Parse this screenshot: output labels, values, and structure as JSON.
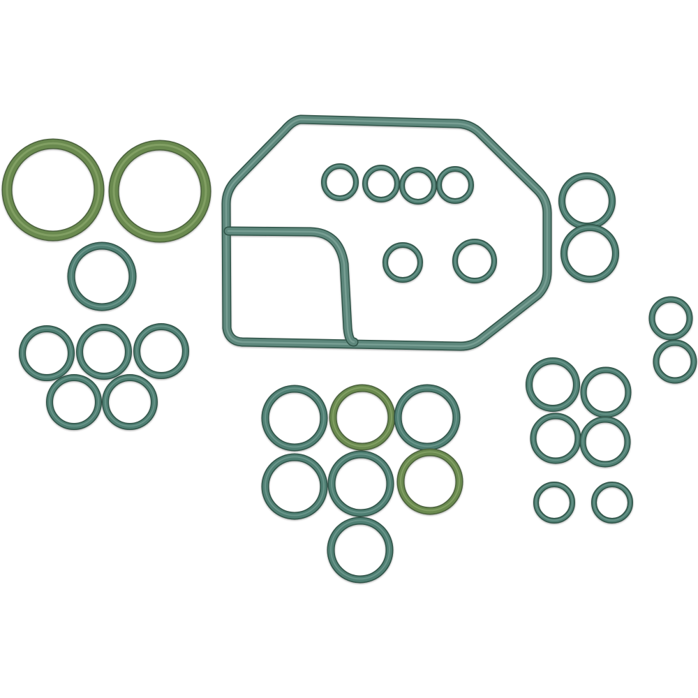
{
  "image": {
    "subject": "o-ring-and-gasket-kit",
    "background_color": "#ffffff",
    "colors": {
      "teal_rubber": "#4f7f73",
      "teal_rubber_highlight": "#7fa79c",
      "olive_rubber": "#6a8a4f",
      "olive_rubber_highlight": "#94b074",
      "shadow": "#2f5247"
    }
  }
}
